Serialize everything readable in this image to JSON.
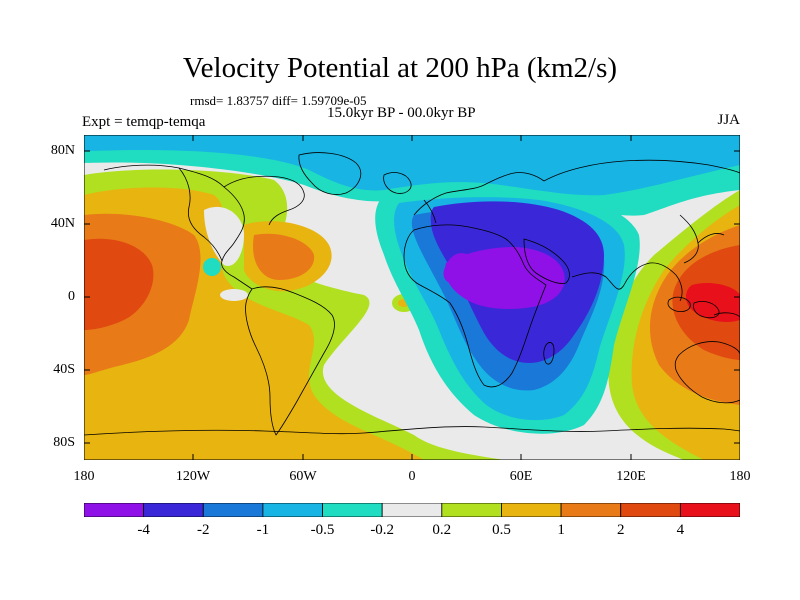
{
  "title": "Velocity Potential at 200 hPa (km2/s)",
  "stats_line": "rmsd= 1.83757 diff= 1.59709e-05",
  "period": "15.0kyr BP - 00.0kyr BP",
  "experiment": "Expt = temqp-temqa",
  "season": "JJA",
  "lat_labels": [
    "80N",
    "40N",
    "0",
    "40S",
    "80S"
  ],
  "lon_labels": [
    "180",
    "120W",
    "60W",
    "0",
    "60E",
    "120E",
    "180"
  ],
  "colorbar": {
    "labels": [
      "-4",
      "-2",
      "-1",
      "-0.5",
      "-0.2",
      "0.2",
      "0.5",
      "1",
      "2",
      "4"
    ],
    "colors": [
      "#9010e8",
      "#3a28d8",
      "#1a78d8",
      "#18b4e4",
      "#20dcc0",
      "#eaeaea",
      "#b0e020",
      "#e8b410",
      "#e87a18",
      "#e04a10",
      "#e8101a"
    ]
  },
  "chart_data": {
    "type": "heatmap",
    "title": "Velocity Potential at 200 hPa (km2/s)",
    "variable": "200 hPa velocity potential difference",
    "units": "km2/s",
    "lat_range": [
      -90,
      90
    ],
    "lon_range": [
      -180,
      180
    ],
    "contour_levels": [
      -4,
      -2,
      -1,
      -0.5,
      -0.2,
      0.2,
      0.5,
      1,
      2,
      4
    ],
    "features": [
      {
        "region": "Africa / Arabia",
        "sign": "negative",
        "min_level": "<-4"
      },
      {
        "region": "Maritime Continent / W Pacific",
        "sign": "positive",
        "max_level": ">4"
      },
      {
        "region": "Central Pacific",
        "sign": "positive",
        "max_level": "2-4"
      },
      {
        "region": "Arctic / N Atlantic",
        "sign": "negative",
        "level": "-1 to -0.5"
      }
    ]
  }
}
